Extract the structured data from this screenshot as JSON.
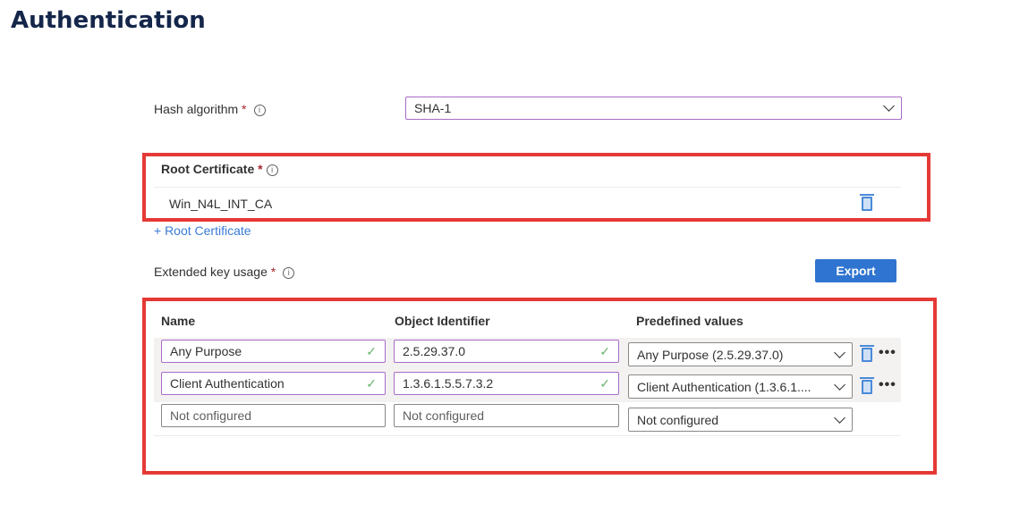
{
  "title": "Authentication",
  "hash": {
    "label": "Hash algorithm",
    "required": "*",
    "info": "i",
    "value": "SHA-1"
  },
  "root_cert": {
    "label": "Root Certificate",
    "required": "*",
    "info": "i",
    "items": [
      "Win_N4L_INT_CA"
    ],
    "add_label": "+ Root Certificate"
  },
  "eku": {
    "label": "Extended key usage",
    "required": "*",
    "info": "i",
    "export_label": "Export",
    "columns": [
      "Name",
      "Object Identifier",
      "Predefined values"
    ],
    "rows": [
      {
        "name": "Any Purpose",
        "oid": "2.5.29.37.0",
        "predefined": "Any Purpose (2.5.29.37.0)"
      },
      {
        "name": "Client Authentication",
        "oid": "1.3.6.1.5.5.7.3.2",
        "predefined": "Client Authentication (1.3.6.1...."
      }
    ],
    "new_row": {
      "name_placeholder": "Not configured",
      "oid_placeholder": "Not configured",
      "predefined": "Not configured"
    },
    "check": "✓",
    "more": "•••"
  },
  "colors": {
    "highlight": "#e53935",
    "accent": "#2f74d0",
    "valid_border": "#a96bc8"
  }
}
